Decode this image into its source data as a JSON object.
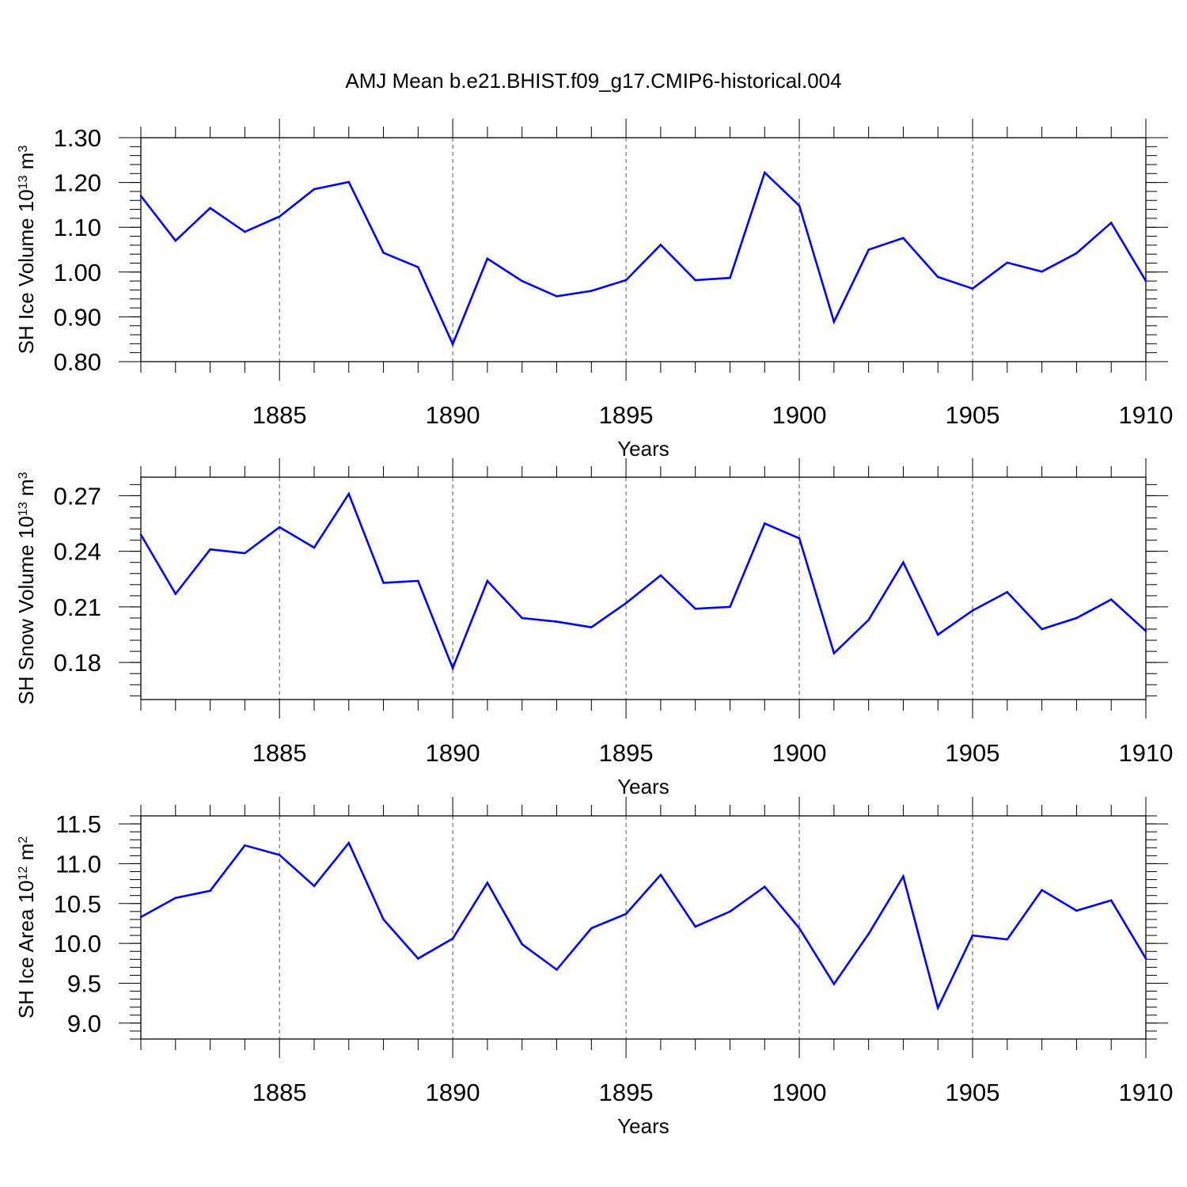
{
  "title": "AMJ Mean b.e21.BHIST.f09_g17.CMIP6-historical.004",
  "colors": {
    "series": "#0000ff",
    "axis": "#000000",
    "grid": "#555555"
  },
  "chart_data": [
    {
      "type": "line",
      "xlabel": "Years",
      "ylabel_main": "SH Ice Volume 10",
      "ylabel_exp": "13",
      "ylabel_unit": " m",
      "ylabel_unit_exp": "3",
      "xlim": [
        1881,
        1910
      ],
      "ylim": [
        0.8,
        1.3
      ],
      "yticks": [
        0.8,
        0.9,
        1.0,
        1.1,
        1.2,
        1.3
      ],
      "ytick_labels": [
        "0.80",
        "0.90",
        "1.00",
        "1.10",
        "1.20",
        "1.30"
      ],
      "xticks": [
        1885,
        1890,
        1895,
        1900,
        1905,
        1910
      ],
      "xtick_labels": [
        "1885",
        "1890",
        "1895",
        "1900",
        "1905",
        "1910"
      ],
      "grid": "vertical dashed at major x ticks",
      "x": [
        1881,
        1882,
        1883,
        1884,
        1885,
        1886,
        1887,
        1888,
        1889,
        1890,
        1891,
        1892,
        1893,
        1894,
        1895,
        1896,
        1897,
        1898,
        1899,
        1900,
        1901,
        1902,
        1903,
        1904,
        1905,
        1906,
        1907,
        1908,
        1909,
        1910
      ],
      "values": [
        1.17,
        1.07,
        1.143,
        1.09,
        1.124,
        1.185,
        1.201,
        1.043,
        1.011,
        0.839,
        1.03,
        0.98,
        0.946,
        0.958,
        0.982,
        1.061,
        0.982,
        0.987,
        1.222,
        1.148,
        0.889,
        1.05,
        1.076,
        0.989,
        0.963,
        1.021,
        1.001,
        1.042,
        1.11,
        0.98
      ]
    },
    {
      "type": "line",
      "xlabel": "Years",
      "ylabel_main": "SH Snow Volume 10",
      "ylabel_exp": "13",
      "ylabel_unit": " m",
      "ylabel_unit_exp": "3",
      "xlim": [
        1881,
        1910
      ],
      "ylim": [
        0.16,
        0.28
      ],
      "yticks": [
        0.18,
        0.21,
        0.24,
        0.27
      ],
      "ytick_labels": [
        "0.18",
        "0.21",
        "0.24",
        "0.27"
      ],
      "xticks": [
        1885,
        1890,
        1895,
        1900,
        1905,
        1910
      ],
      "xtick_labels": [
        "1885",
        "1890",
        "1895",
        "1900",
        "1905",
        "1910"
      ],
      "grid": "vertical dashed at major x ticks",
      "x": [
        1881,
        1882,
        1883,
        1884,
        1885,
        1886,
        1887,
        1888,
        1889,
        1890,
        1891,
        1892,
        1893,
        1894,
        1895,
        1896,
        1897,
        1898,
        1899,
        1900,
        1901,
        1902,
        1903,
        1904,
        1905,
        1906,
        1907,
        1908,
        1909,
        1910
      ],
      "values": [
        0.249,
        0.217,
        0.241,
        0.239,
        0.253,
        0.242,
        0.271,
        0.223,
        0.224,
        0.177,
        0.224,
        0.204,
        0.202,
        0.199,
        0.212,
        0.227,
        0.209,
        0.21,
        0.255,
        0.247,
        0.185,
        0.203,
        0.234,
        0.195,
        0.208,
        0.218,
        0.198,
        0.204,
        0.214,
        0.197
      ]
    },
    {
      "type": "line",
      "xlabel": "Years",
      "ylabel_main": "SH Ice Area 10",
      "ylabel_exp": "12",
      "ylabel_unit": " m",
      "ylabel_unit_exp": "2",
      "xlim": [
        1881,
        1910
      ],
      "ylim": [
        8.8,
        11.6
      ],
      "yticks": [
        9.0,
        9.5,
        10.0,
        10.5,
        11.0,
        11.5
      ],
      "ytick_labels": [
        "9.0",
        "9.5",
        "10.0",
        "10.5",
        "11.0",
        "11.5"
      ],
      "xticks": [
        1885,
        1890,
        1895,
        1900,
        1905,
        1910
      ],
      "xtick_labels": [
        "1885",
        "1890",
        "1895",
        "1900",
        "1905",
        "1910"
      ],
      "grid": "vertical dashed at major x ticks",
      "x": [
        1881,
        1882,
        1883,
        1884,
        1885,
        1886,
        1887,
        1888,
        1889,
        1890,
        1891,
        1892,
        1893,
        1894,
        1895,
        1896,
        1897,
        1898,
        1899,
        1900,
        1901,
        1902,
        1903,
        1904,
        1905,
        1906,
        1907,
        1908,
        1909,
        1910
      ],
      "values": [
        10.33,
        10.57,
        10.66,
        11.23,
        11.11,
        10.72,
        11.26,
        10.3,
        9.81,
        10.06,
        10.76,
        9.99,
        9.67,
        10.19,
        10.37,
        10.86,
        10.21,
        10.4,
        10.71,
        10.19,
        9.49,
        10.12,
        10.84,
        9.19,
        10.1,
        10.05,
        10.67,
        10.41,
        10.54,
        9.81
      ]
    }
  ]
}
